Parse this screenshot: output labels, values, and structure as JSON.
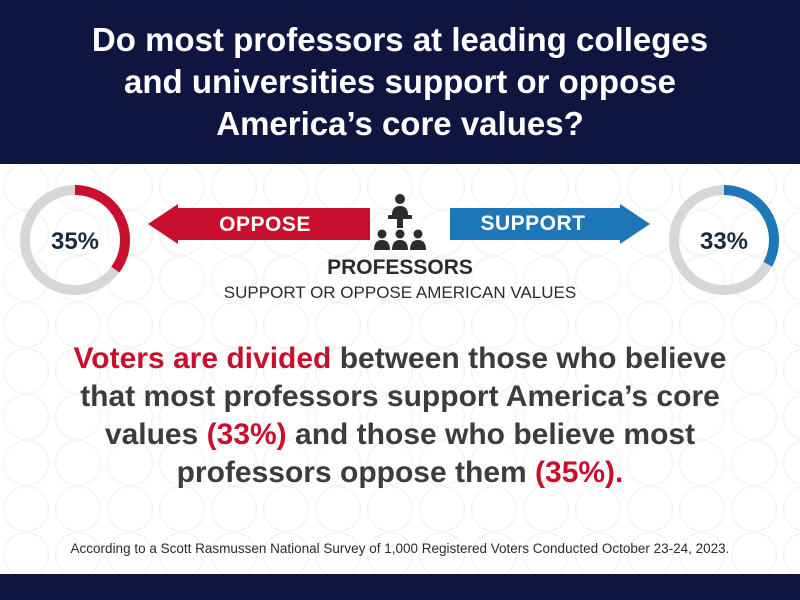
{
  "header": {
    "title": "Do most professors at leading colleges and universities support or oppose America’s core values?"
  },
  "chart_data": {
    "type": "pie",
    "categories": [
      "Oppose",
      "Support"
    ],
    "values": [
      35,
      33
    ],
    "labels": [
      "35%",
      "33%"
    ],
    "colors": {
      "oppose": "#c8102e",
      "support": "#1d77b8",
      "track": "#d7d7d7"
    }
  },
  "arrows": {
    "oppose_label": "OPPOSE",
    "support_label": "SUPPORT"
  },
  "center": {
    "title": "PROFESSORS",
    "subtitle": "SUPPORT OR OPPOSE AMERICAN VALUES",
    "icon": "professors-icon"
  },
  "statement": {
    "part1": "Voters are divided",
    "part2": " between those who believe that most professors support America’s core values ",
    "part3": "(33%)",
    "part4": " and those who believe most professors oppose them ",
    "part5": "(35%)."
  },
  "source": "According to a Scott Rasmussen National Survey of 1,000 Registered Voters Conducted October 23-24, 2023."
}
